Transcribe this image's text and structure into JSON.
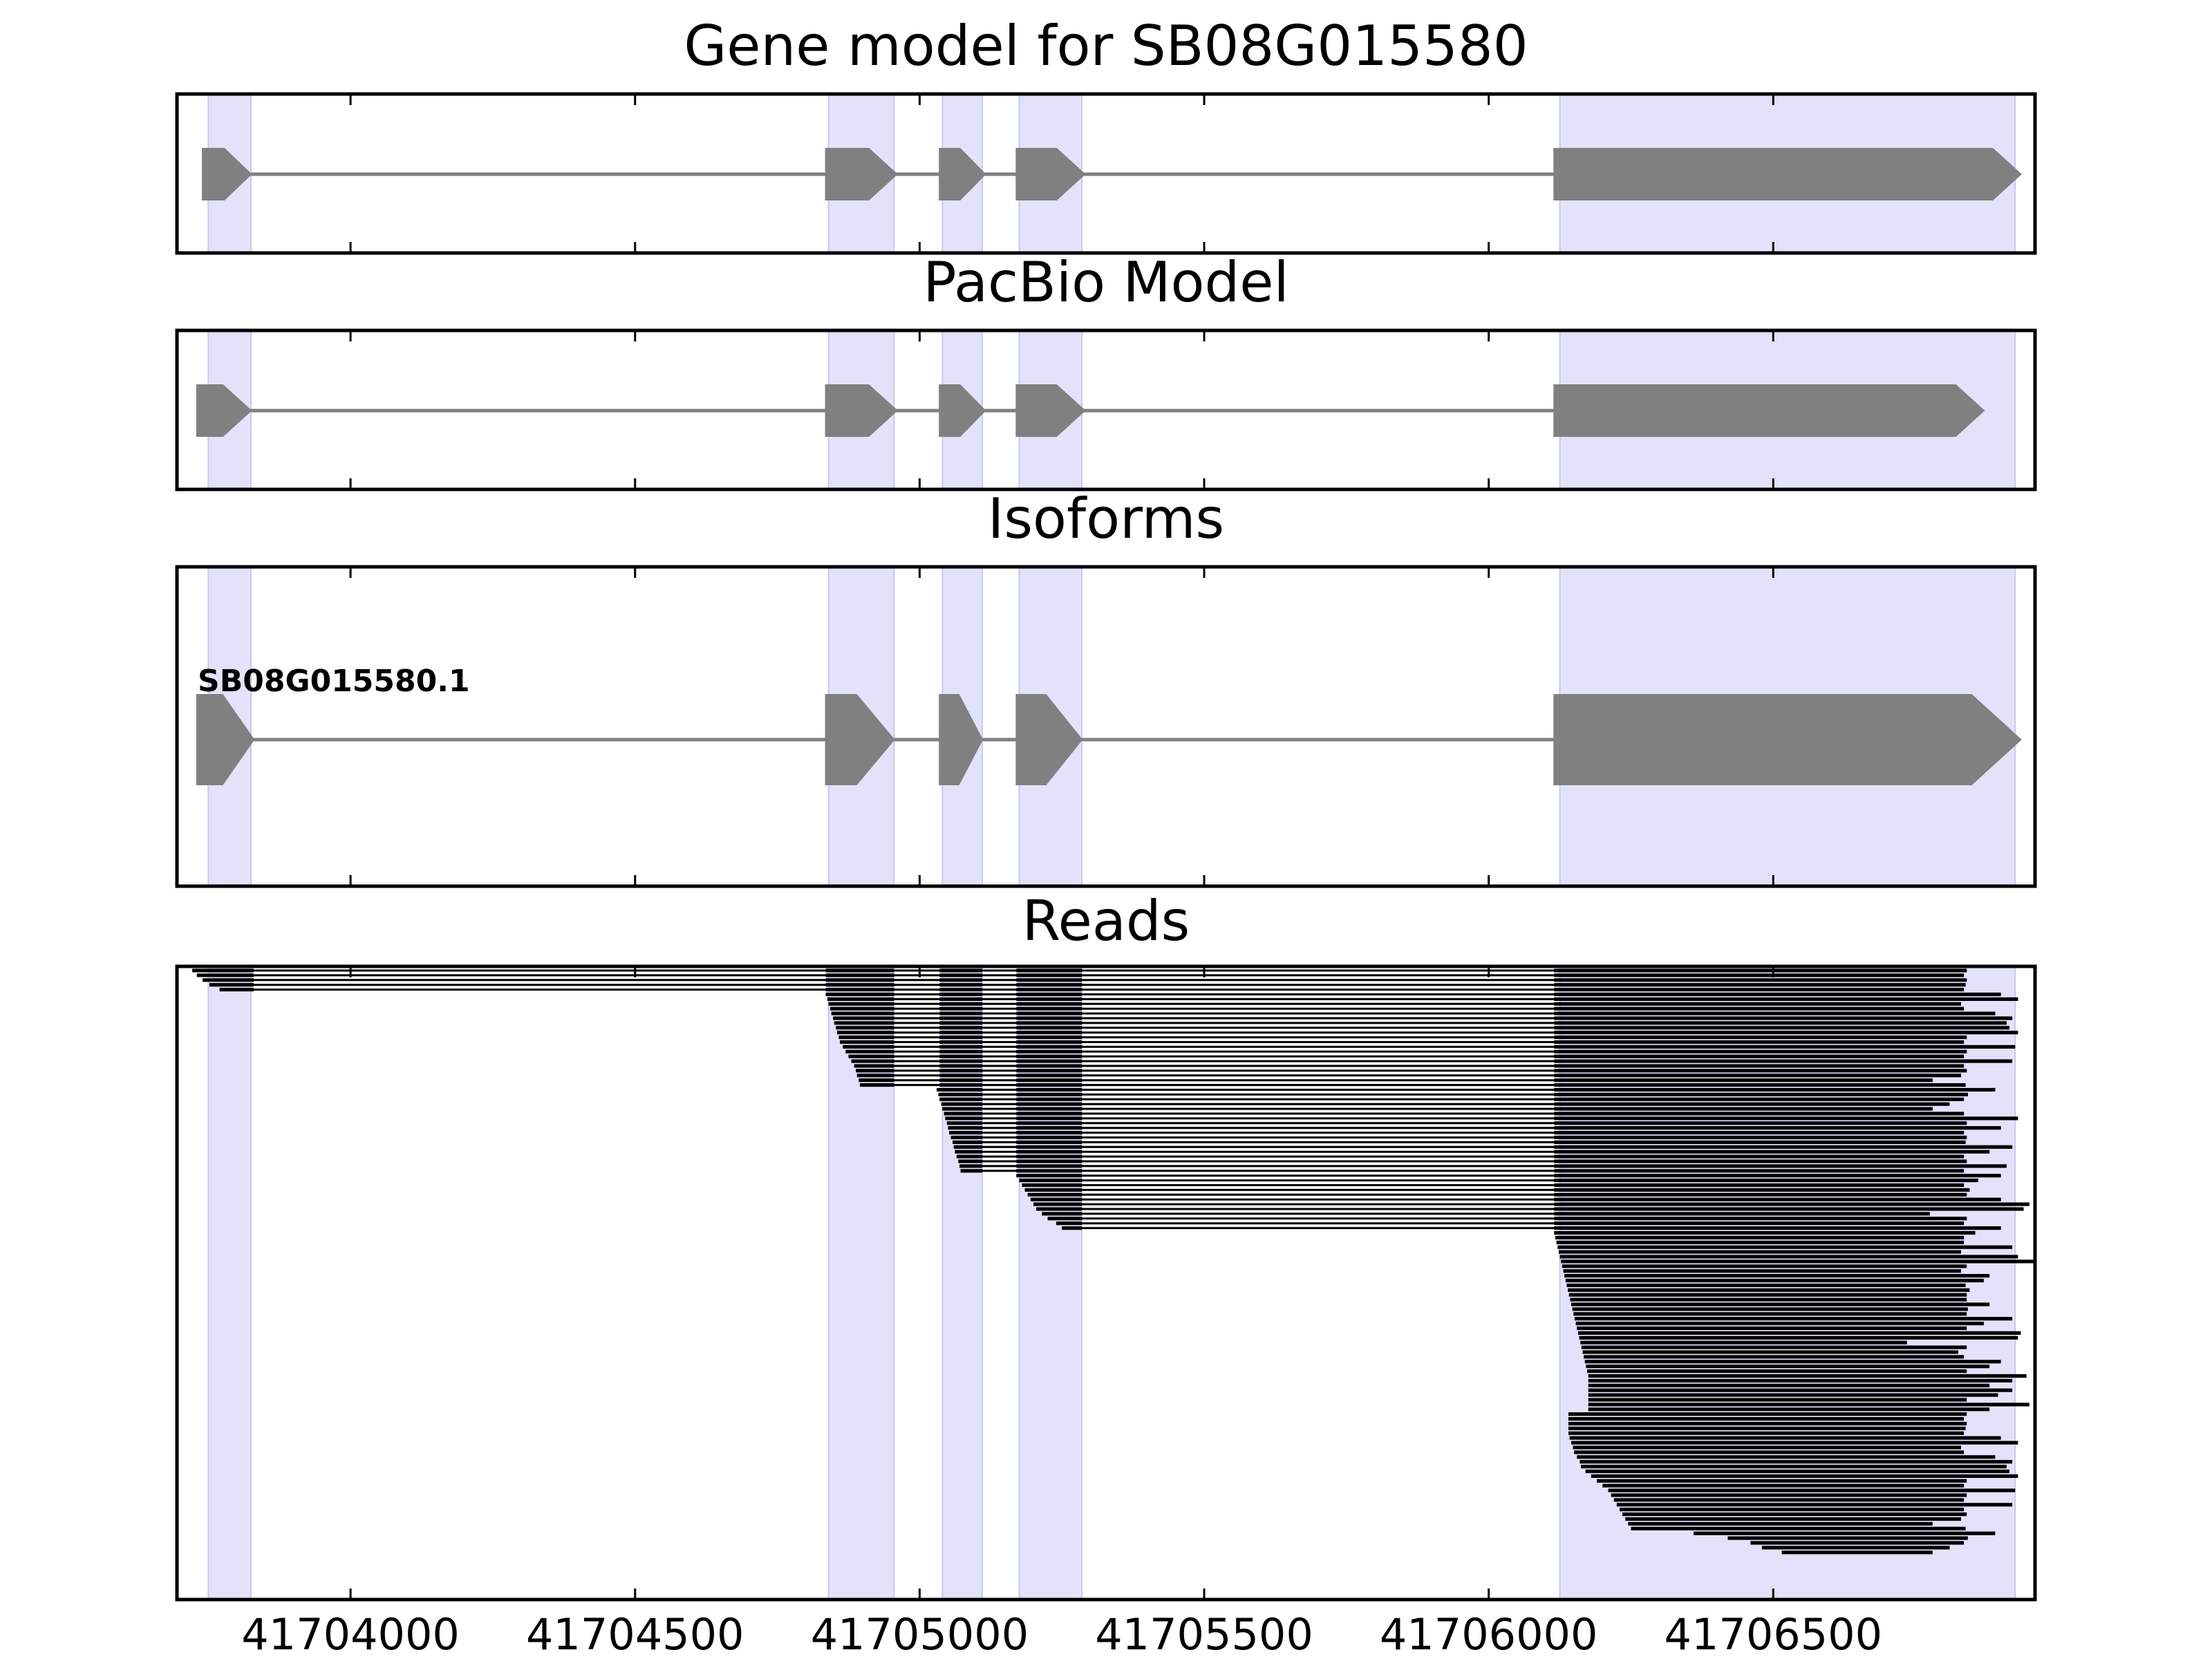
{
  "panels": [
    {
      "id": "gene",
      "title": "Gene model for SB08G015580"
    },
    {
      "id": "pacbio",
      "title": "PacBio Model"
    },
    {
      "id": "iso",
      "title": "Isoforms"
    },
    {
      "id": "reads",
      "title": "Reads"
    }
  ],
  "x_ticks": [
    "41704000",
    "41704500",
    "41705000",
    "41705500",
    "41706000",
    "41706500"
  ],
  "colors": {
    "exon": "#808080",
    "highlight": "#e2e2fb",
    "highlight_edge": "#c8c8f0",
    "read": "#000000",
    "frame": "#000000"
  },
  "chart_data": {
    "type": "gene-structure",
    "xlim": [
      41703695,
      41706960
    ],
    "highlight_regions": [
      [
        41703750,
        41703825
      ],
      [
        41704840,
        41704955
      ],
      [
        41705040,
        41705110
      ],
      [
        41705175,
        41705285
      ],
      [
        41706125,
        41706925
      ]
    ],
    "gene_model": {
      "title": "Gene model for SB08G015580",
      "exons": [
        [
          41703740,
          41703825
        ],
        [
          41704835,
          41704960
        ],
        [
          41705035,
          41705115
        ],
        [
          41705170,
          41705290
        ],
        [
          41706115,
          41706935
        ]
      ],
      "strand": "+"
    },
    "pacbio_model": {
      "title": "PacBio Model",
      "exons": [
        [
          41703730,
          41703825
        ],
        [
          41704835,
          41704960
        ],
        [
          41705035,
          41705115
        ],
        [
          41705170,
          41705290
        ],
        [
          41706115,
          41706870
        ]
      ],
      "strand": "+"
    },
    "isoforms": {
      "title": "Isoforms",
      "items": [
        {
          "label": "SB08G015580.1",
          "exons": [
            [
              41703730,
              41703830
            ],
            [
              41704835,
              41704955
            ],
            [
              41705035,
              41705110
            ],
            [
              41705170,
              41705285
            ],
            [
              41706115,
              41706935
            ]
          ]
        }
      ]
    },
    "reads": {
      "title": "Reads",
      "groups": [
        {
          "exons": [
            [
              41704835,
              41704955
            ],
            [
              41705035,
              41705110
            ],
            [
              41705170,
              41705285
            ]
          ],
          "first_exon_end": 41703830,
          "starts": [
            41703722,
            41703730,
            41703740,
            41703752,
            41703770
          ],
          "first_exon_from_read": true
        },
        {
          "exons": [
            [
              41705035,
              41705110
            ],
            [
              41705170,
              41705285
            ]
          ],
          "first_exon_end": 41704955,
          "starts": [
            41704835,
            41704838,
            41704840,
            41704843,
            41704845,
            41704848,
            41704850,
            41704853,
            41704855,
            41704858,
            41704860,
            41704865,
            41704870,
            41704875,
            41704880,
            41704885,
            41704888,
            41704890,
            41704893,
            41704895
          ]
        },
        {
          "exons": [
            [
              41705170,
              41705285
            ]
          ],
          "first_exon_end": 41705110,
          "starts": [
            41705030,
            41705033,
            41705035,
            41705038,
            41705040,
            41705043,
            41705045,
            41705048,
            41705050,
            41705052,
            41705055,
            41705058,
            41705060,
            41705062,
            41705065,
            41705068,
            41705070,
            41705072
          ]
        },
        {
          "exons": [],
          "first_exon_end": 41705285,
          "starts": [
            41705170,
            41705175,
            41705180,
            41705185,
            41705190,
            41705195,
            41705200,
            41705205,
            41705215,
            41705225,
            41705240,
            41705250
          ]
        }
      ],
      "last_exon_start": 41706115,
      "last_exon_ends": [
        41706840,
        41706835,
        41706840,
        41706838,
        41706835,
        41706900,
        41706930,
        41706830,
        41706835,
        41706890,
        41706920,
        41706910,
        41706915,
        41706930,
        41706840,
        41706835,
        41706925,
        41706840,
        41706835,
        41706920,
        41706835,
        41706840,
        41706830,
        41706780,
        41706838,
        41706890,
        41706842,
        41706835,
        41706810,
        41706780,
        41706835,
        41706930,
        41706840,
        41706900,
        41706835,
        41706840,
        41706838,
        41706920,
        41706880,
        41706835,
        41706840,
        41706910,
        41706835,
        41706900,
        41706860,
        41706835,
        41706845,
        41706840,
        41706900,
        41706950,
        41706940,
        41706775,
        41706840,
        41706835,
        41706900,
        41706855,
        41706835,
        41706835,
        41706920,
        41706830,
        41706930,
        41706960,
        41706840,
        41706830,
        41706880,
        41706870,
        41706838,
        41706845,
        41706840,
        41706840,
        41706880,
        41706842,
        41706840,
        41706920,
        41706870,
        41706840,
        41706935,
        41706930,
        41706735,
        41706840,
        41706825,
        41706835,
        41706900,
        41706880,
        41706840,
        41706945,
        41706920,
        41706880,
        41706920,
        41706895,
        41706840,
        41706950,
        41706880
      ],
      "late_starts": [
        41706140,
        41706140,
        41706140,
        41706140,
        41706140,
        41706142,
        41706145,
        41706148,
        41706150,
        41706155,
        41706160,
        41706162,
        41706170,
        41706180,
        41706190,
        41706200,
        41706210,
        41706215,
        41706220,
        41706225,
        41706230,
        41706235,
        41706240,
        41706245,
        41706250,
        41706360,
        41706420,
        41706460,
        41706480,
        41706515
      ]
    }
  }
}
